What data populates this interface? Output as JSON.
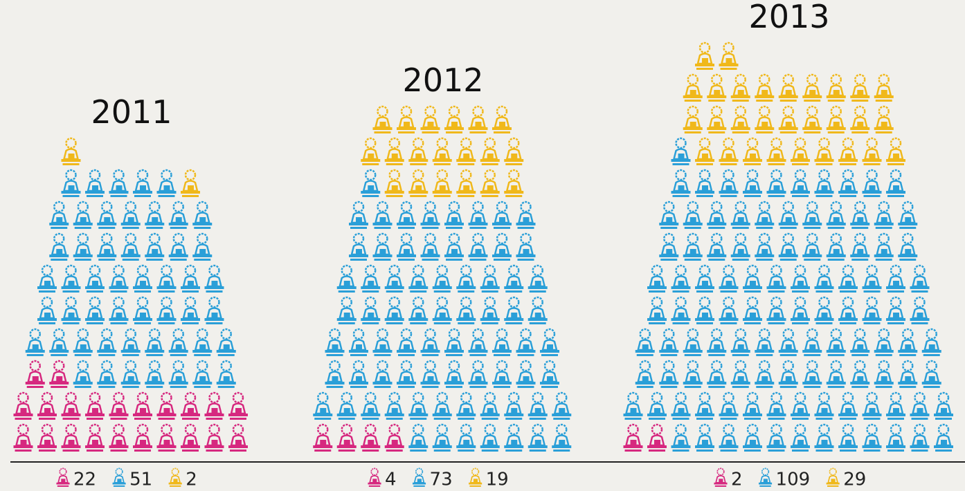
{
  "chart_data": {
    "type": "isotype",
    "categories": [
      "2011",
      "2012",
      "2013"
    ],
    "series": [
      {
        "color": "#d6287f",
        "values": [
          22,
          4,
          2
        ]
      },
      {
        "color": "#2a9fd8",
        "values": [
          51,
          73,
          109
        ]
      },
      {
        "color": "#f0b81a",
        "values": [
          2,
          19,
          29
        ]
      }
    ]
  }
}
